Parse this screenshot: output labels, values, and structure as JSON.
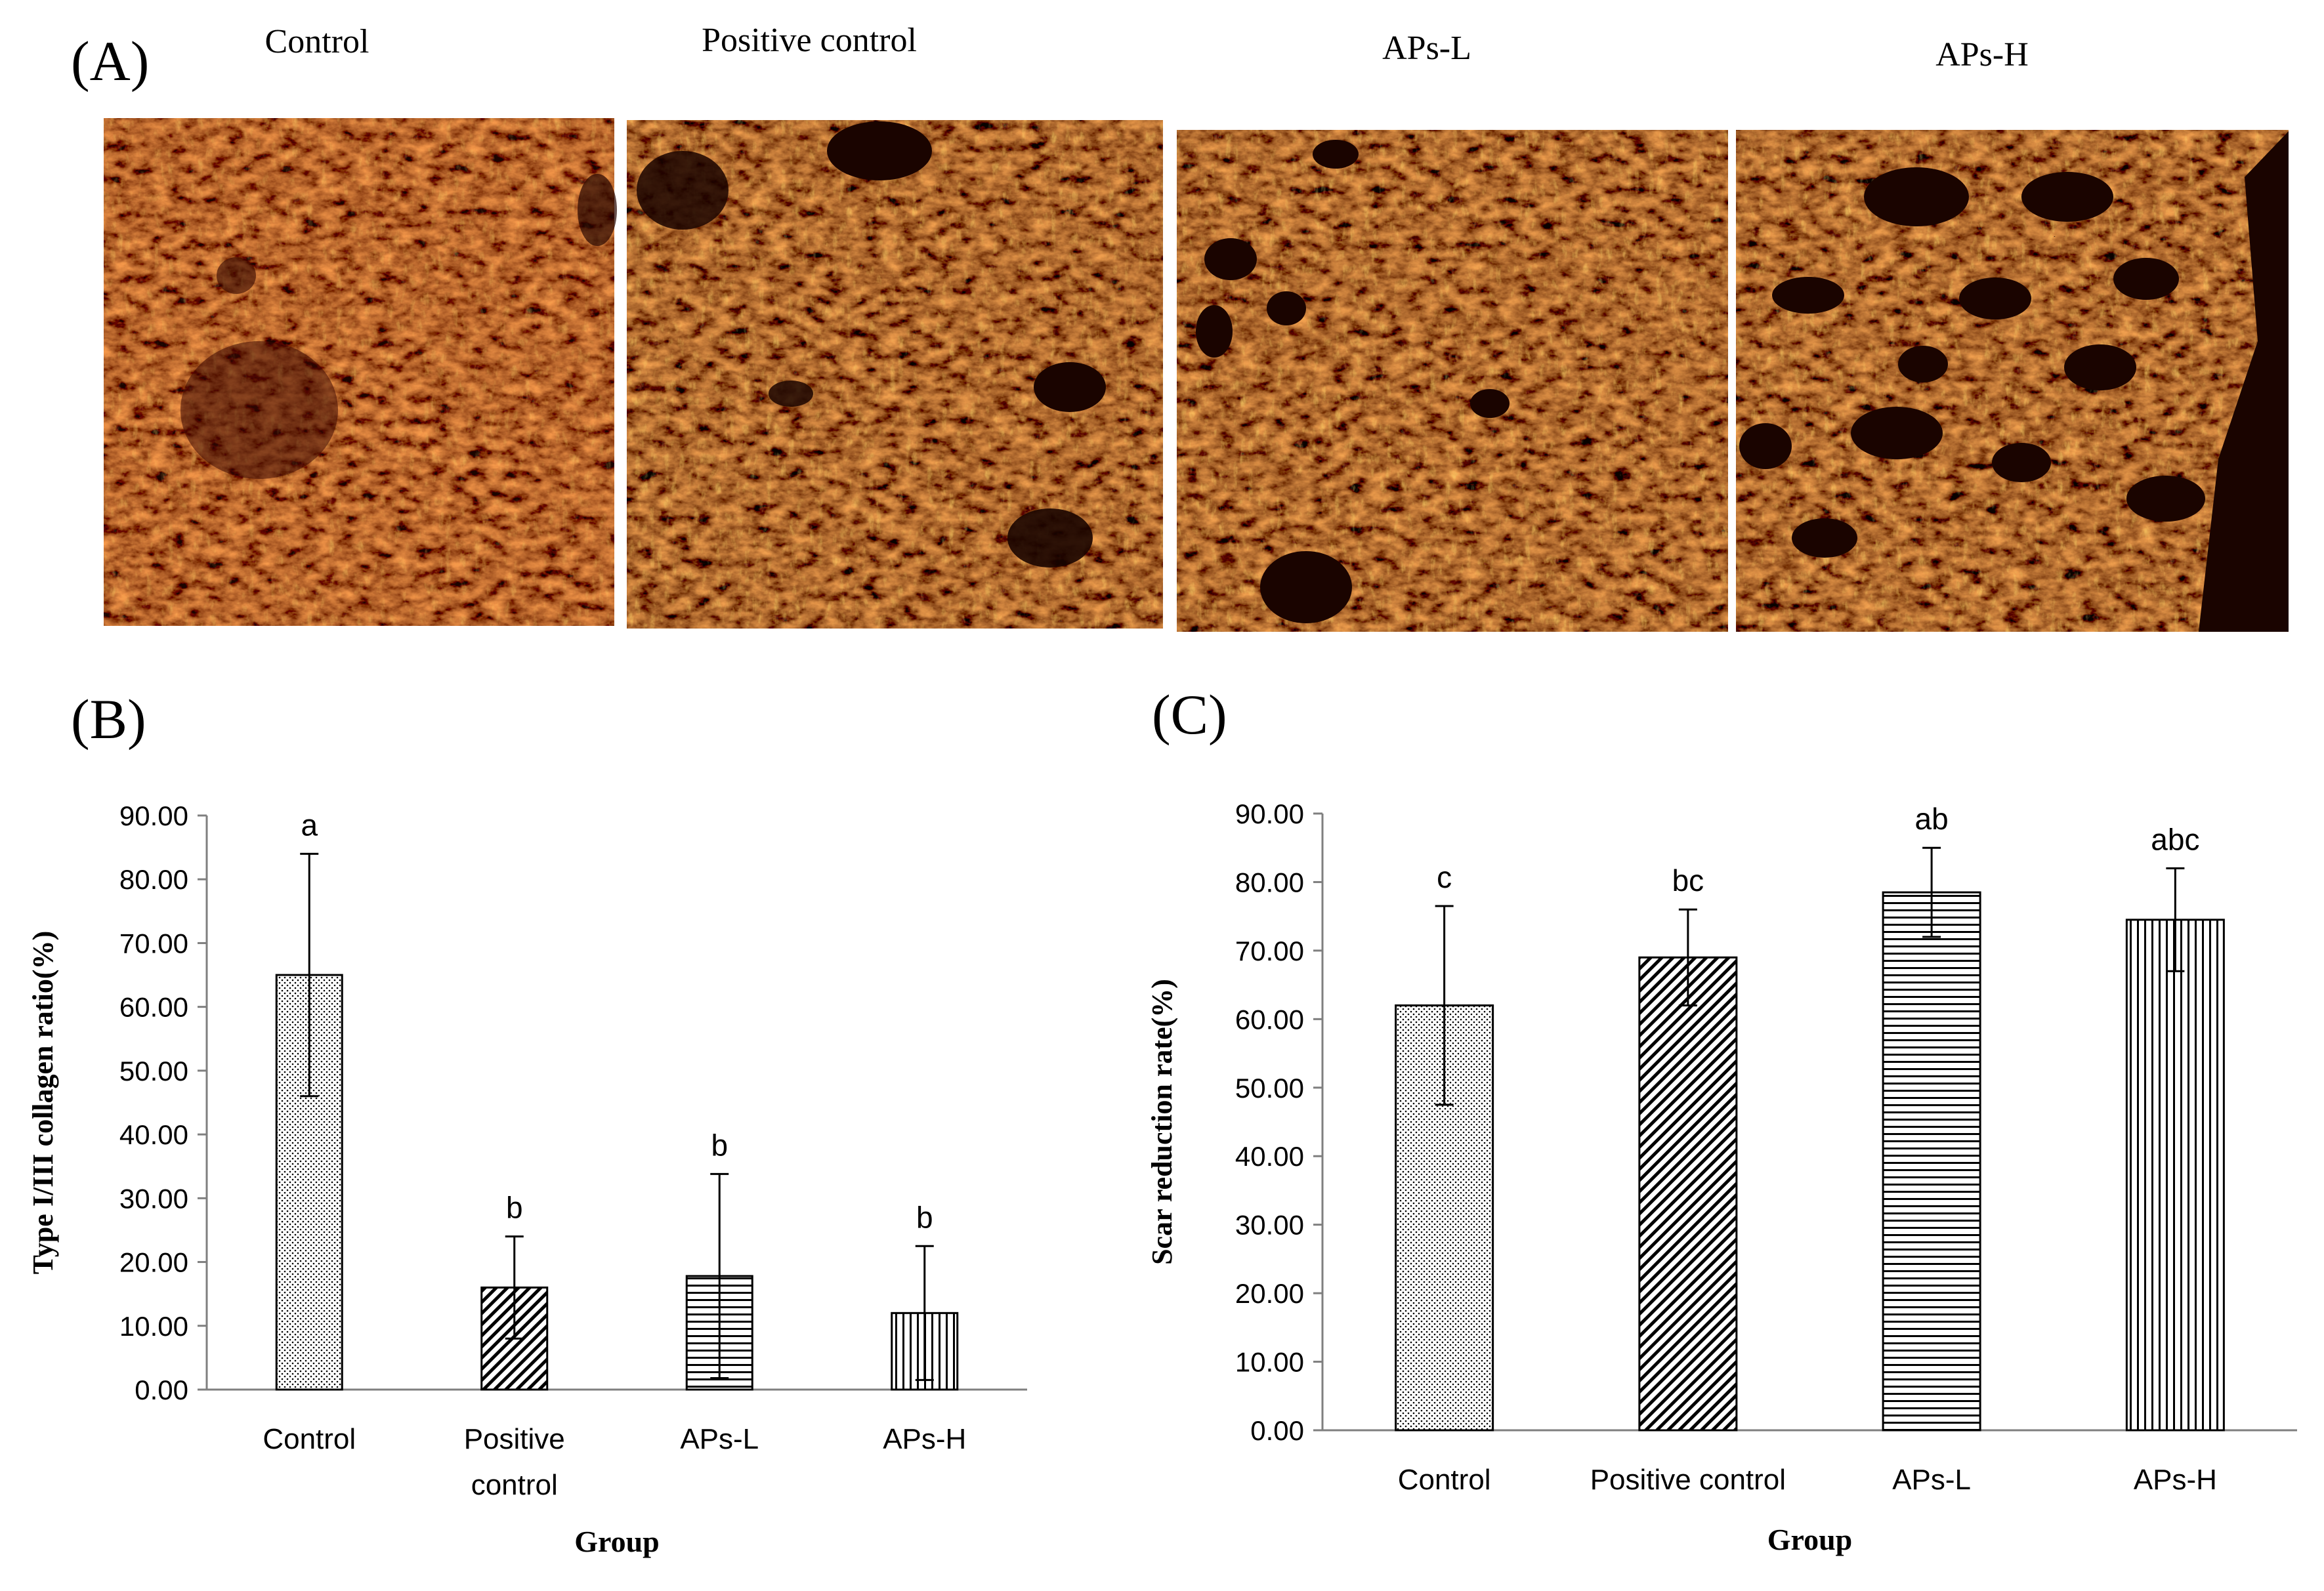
{
  "panel_a": {
    "label": "(A)",
    "images": [
      {
        "caption": "Control"
      },
      {
        "caption": "Positive control"
      },
      {
        "caption": "APs-L"
      },
      {
        "caption": "APs-H"
      }
    ]
  },
  "colors": {
    "background": "#ffffff",
    "axis": "#7f7f7f",
    "bar_stroke": "#000000",
    "text": "#000000",
    "micrograph_dark": "#1a0400",
    "micrograph_red": "#d62a08",
    "micrograph_orange": "#ff7a12",
    "micrograph_gold": "#f0b020"
  },
  "chart_data": [
    {
      "panel_label": "(B)",
      "type": "bar",
      "categories": [
        "Control",
        "Positive control",
        "APs-L",
        "APs-H"
      ],
      "category_lines": [
        [
          "Control"
        ],
        [
          "Positive",
          "control"
        ],
        [
          "APs-L"
        ],
        [
          "APs-H"
        ]
      ],
      "values": [
        65.0,
        16.0,
        17.8,
        12.0
      ],
      "errors": [
        19.0,
        8.0,
        16.0,
        10.5
      ],
      "letters": [
        "a",
        "b",
        "b",
        "b"
      ],
      "patterns": [
        "dots",
        "diagonal",
        "horizontal",
        "vertical"
      ],
      "ylim": [
        0,
        90
      ],
      "yticks": [
        "0.00",
        "10.00",
        "20.00",
        "30.00",
        "40.00",
        "50.00",
        "60.00",
        "70.00",
        "80.00",
        "90.00"
      ],
      "xlabel": "Group",
      "ylabel": "Type I/III collagen ratio(%)",
      "grid": false,
      "legend": "none"
    },
    {
      "panel_label": "(C)",
      "type": "bar",
      "categories": [
        "Control",
        "Positive control",
        "APs-L",
        "APs-H"
      ],
      "category_lines": [
        [
          "Control"
        ],
        [
          "Positive control"
        ],
        [
          "APs-L"
        ],
        [
          "APs-H"
        ]
      ],
      "values": [
        62.0,
        69.0,
        78.5,
        74.5
      ],
      "errors": [
        14.5,
        7.0,
        6.5,
        7.5
      ],
      "letters": [
        "c",
        "bc",
        "ab",
        "abc"
      ],
      "patterns": [
        "dots",
        "diagonal",
        "horizontal",
        "vertical"
      ],
      "ylim": [
        0,
        90
      ],
      "yticks": [
        "0.00",
        "10.00",
        "20.00",
        "30.00",
        "40.00",
        "50.00",
        "60.00",
        "70.00",
        "80.00",
        "90.00"
      ],
      "xlabel": "Group",
      "ylabel": "Scar reduction rate(%)",
      "grid": false,
      "legend": "none"
    }
  ]
}
